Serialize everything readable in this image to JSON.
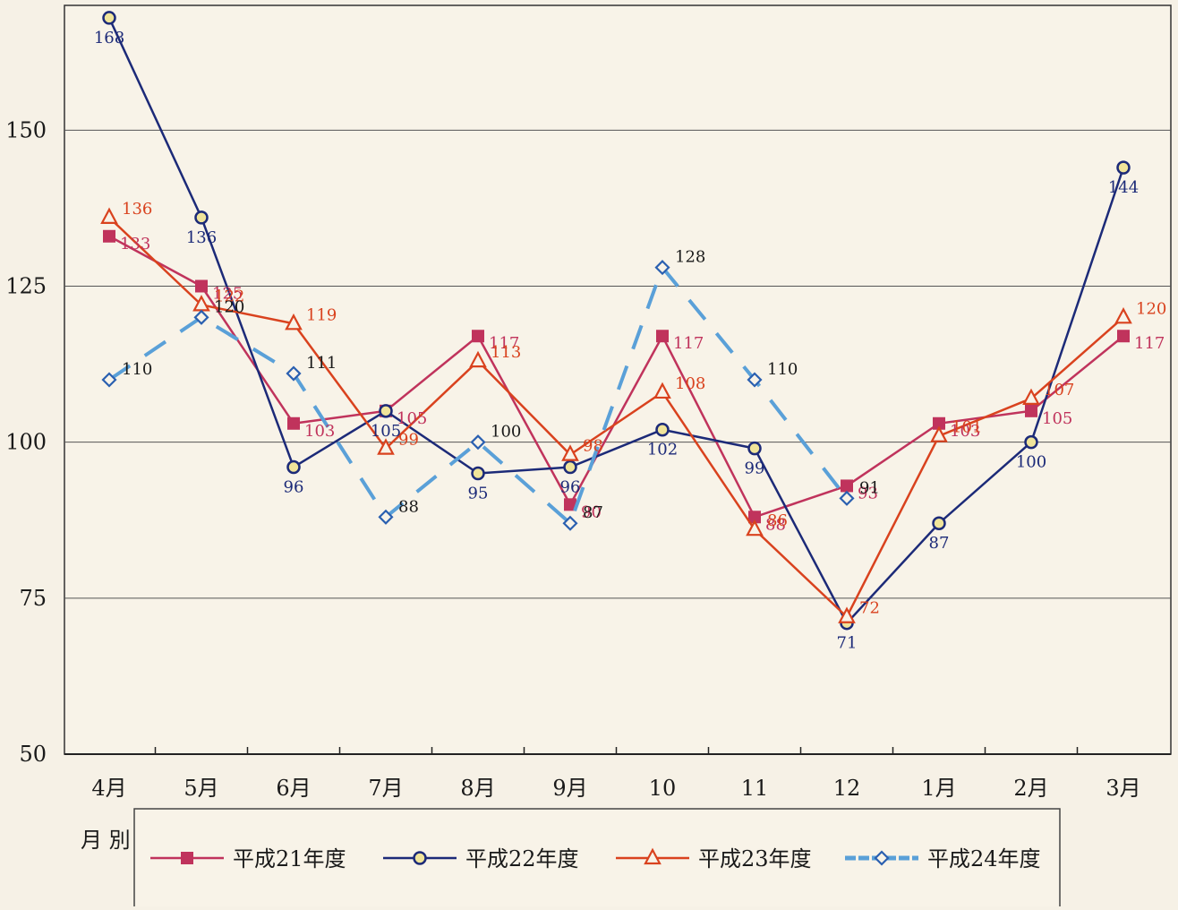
{
  "chart_data": {
    "type": "line",
    "categories": [
      "4月",
      "5月",
      "6月",
      "7月",
      "8月",
      "9月",
      "10",
      "11",
      "12",
      "1月",
      "2月",
      "3月"
    ],
    "ylim": [
      50,
      170
    ],
    "yticks": [
      50,
      75,
      100,
      125,
      150
    ],
    "grid": true,
    "legend_position": "bottom",
    "caption_fragment": "月 別",
    "series": [
      {
        "name": "平成21年度",
        "color": "#c0335c",
        "marker": "square",
        "dash": "solid",
        "values": [
          133,
          125,
          103,
          105,
          117,
          90,
          117,
          88,
          93,
          103,
          105,
          117
        ]
      },
      {
        "name": "平成22年度",
        "color": "#1c2a78",
        "marker": "circle",
        "dash": "solid",
        "values": [
          168,
          136,
          96,
          105,
          95,
          96,
          102,
          99,
          71,
          87,
          100,
          144
        ]
      },
      {
        "name": "平成23年度",
        "color": "#d9421e",
        "marker": "triangle",
        "dash": "solid",
        "values": [
          136,
          122,
          119,
          99,
          113,
          98,
          108,
          86,
          72,
          101,
          107,
          120
        ]
      },
      {
        "name": "平成24年度",
        "color": "#5aa0d8",
        "marker": "diamond",
        "dash": "dashed",
        "values": [
          110,
          120,
          111,
          88,
          100,
          87,
          128,
          110,
          91,
          null,
          null,
          null
        ]
      }
    ]
  }
}
